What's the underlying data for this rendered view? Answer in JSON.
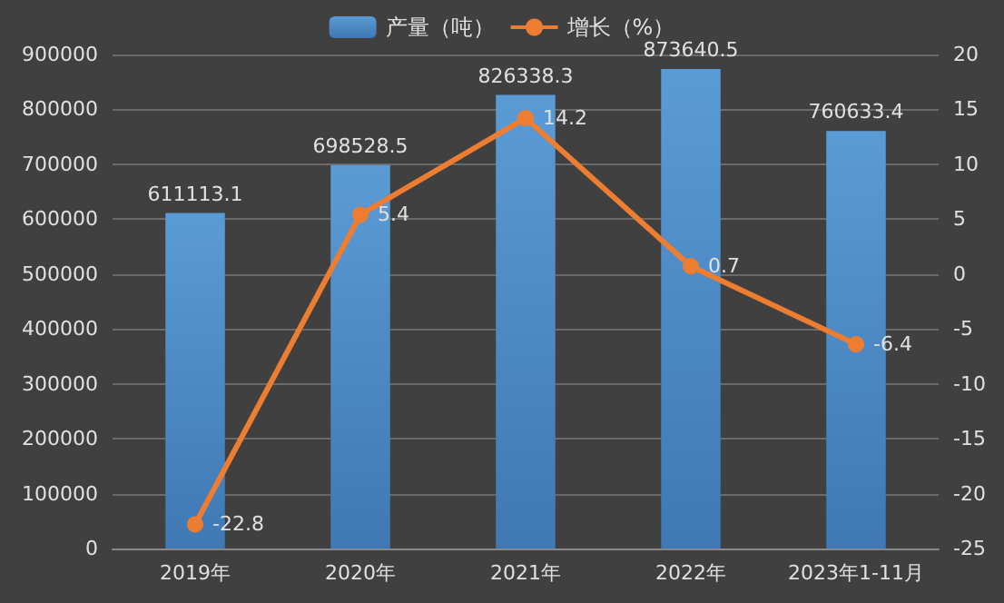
{
  "chart_data": {
    "type": "bar",
    "categories": [
      "2019年",
      "2020年",
      "2021年",
      "2022年",
      "2023年1-11月"
    ],
    "series": [
      {
        "name": "产量（吨）",
        "color": "#5b9bd5",
        "values": [
          611113.1,
          698528.5,
          826338.3,
          873640.5,
          760633.4
        ]
      },
      {
        "name": "增长（%）",
        "type": "line",
        "axis": "y2",
        "color": "#ed7d31",
        "values": [
          -22.8,
          5.4,
          14.2,
          0.7,
          -6.4
        ]
      }
    ],
    "ylim": [
      0,
      900000
    ],
    "yticks": [
      0,
      100000,
      200000,
      300000,
      400000,
      500000,
      600000,
      700000,
      800000,
      900000
    ],
    "y2lim": [
      -25,
      20
    ],
    "y2ticks": [
      -25,
      -20,
      -15,
      -10,
      -5,
      0,
      5,
      10,
      15,
      20
    ],
    "data_labels": true,
    "grid": "y",
    "legend": "top",
    "marker": "circle",
    "line_style": "solid"
  }
}
